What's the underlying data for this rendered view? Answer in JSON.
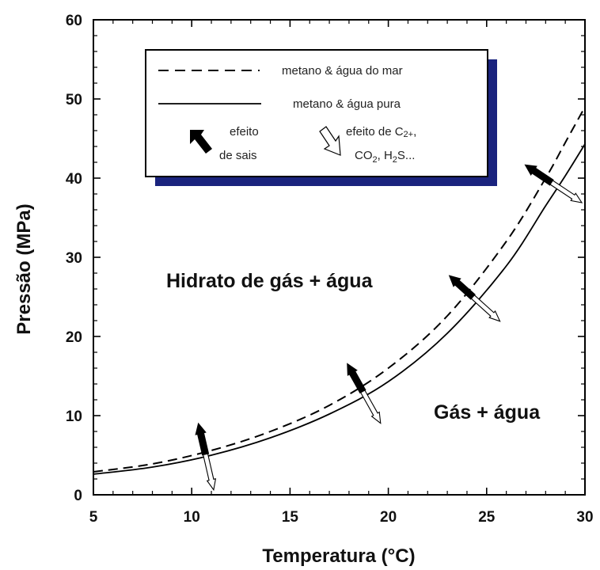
{
  "chart_data": {
    "type": "line",
    "title": "",
    "xlabel": "Temperatura (°C)",
    "ylabel": "Pressão (MPa)",
    "xlim": [
      5,
      30
    ],
    "ylim": [
      0,
      60
    ],
    "x_ticks": [
      "5",
      "10",
      "15",
      "20",
      "25",
      "30"
    ],
    "y_ticks": [
      "0",
      "10",
      "20",
      "30",
      "40",
      "50",
      "60"
    ],
    "grid": false,
    "legend_position": "top-center",
    "series": [
      {
        "name": "metano & água do mar",
        "style": "dashed",
        "x": [
          5,
          8,
          11,
          14,
          17,
          20,
          23,
          26,
          28,
          29,
          30
        ],
        "y": [
          2.9,
          3.9,
          5.6,
          8.0,
          11.3,
          16.0,
          22.6,
          32.0,
          40.0,
          44.5,
          49.0
        ]
      },
      {
        "name": "metano & água pura",
        "style": "solid",
        "x": [
          5,
          8,
          11,
          14,
          17,
          20,
          23,
          26,
          28,
          29,
          30
        ],
        "y": [
          2.6,
          3.5,
          5.0,
          7.2,
          10.2,
          14.3,
          20.4,
          28.9,
          36.5,
          40.3,
          44.3
        ]
      }
    ],
    "legend_effects": {
      "salts": "efeito\nde sais",
      "gases_line1": "efeito de C",
      "gases_sub1": "2+",
      "gases_line2_prefix": "CO",
      "gases_sub2": "2",
      "gases_mid": ", H",
      "gases_sub3": "2",
      "gases_line2_suffix": "S..."
    },
    "arrow_positions_x": [
      10.7,
      18.7,
      24.3,
      28.3
    ],
    "annotations": [
      {
        "text": "Hidrato de gás + água",
        "x": 9.0,
        "y": 26.5
      },
      {
        "text": "Gás + água",
        "x": 22.5,
        "y": 9.8
      }
    ],
    "colors": {
      "legend_shadow": "#1a237e",
      "line": "#000000",
      "effect_arrow_fill": "#000000",
      "gas_arrow_fill": "#ffffff"
    }
  }
}
